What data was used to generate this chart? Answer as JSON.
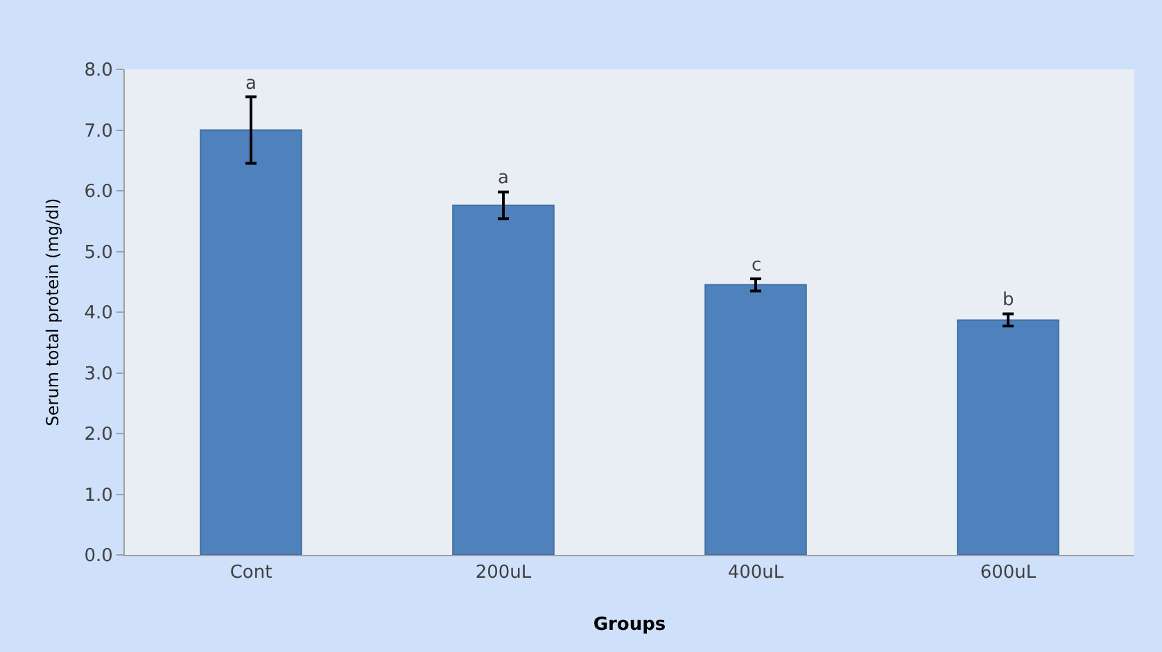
{
  "chart_data": {
    "type": "bar",
    "xlabel": "Groups",
    "ylabel": "Serum total protein (mg/dl)",
    "categories": [
      "Cont",
      "200uL",
      "400uL",
      "600uL"
    ],
    "values": [
      7.0,
      5.76,
      4.45,
      3.87
    ],
    "errors": [
      0.55,
      0.22,
      0.1,
      0.1
    ],
    "color": "#4f81bd",
    "ylim": [
      0,
      8
    ],
    "yticks": [
      {
        "value": 0,
        "label": "0.0"
      },
      {
        "value": 1,
        "label": "1.0"
      },
      {
        "value": 2,
        "label": "2.0"
      },
      {
        "value": 3,
        "label": "3.0"
      },
      {
        "value": 4,
        "label": "4.0"
      },
      {
        "value": 5,
        "label": "5.0"
      },
      {
        "value": 6,
        "label": "6.0"
      },
      {
        "value": 7,
        "label": "7.0"
      },
      {
        "value": 8,
        "label": "8.0"
      }
    ],
    "annotations": [
      {
        "text": "a",
        "x": "Cont",
        "y": 7.55
      },
      {
        "text": "a",
        "x": "200uL",
        "y": 5.98
      },
      {
        "text": "c",
        "x": "400uL",
        "y": 4.55
      },
      {
        "text": "b",
        "x": "600uL",
        "y": 3.97
      }
    ],
    "grid": false,
    "legend": false
  }
}
